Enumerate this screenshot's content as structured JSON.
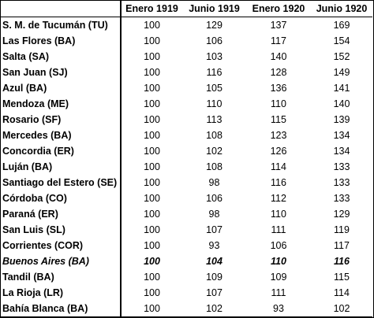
{
  "table": {
    "columns": [
      "",
      "Enero 1919",
      "Junio 1919",
      "Enero 1920",
      "Junio 1920"
    ],
    "rows": [
      {
        "city": "S. M. de Tucumán (TU)",
        "values": [
          "100",
          "129",
          "137",
          "169"
        ],
        "highlight": false
      },
      {
        "city": "Las Flores (BA)",
        "values": [
          "100",
          "106",
          "117",
          "154"
        ],
        "highlight": false
      },
      {
        "city": "Salta (SA)",
        "values": [
          "100",
          "103",
          "140",
          "152"
        ],
        "highlight": false
      },
      {
        "city": "San Juan (SJ)",
        "values": [
          "100",
          "116",
          "128",
          "149"
        ],
        "highlight": false
      },
      {
        "city": "Azul (BA)",
        "values": [
          "100",
          "105",
          "136",
          "141"
        ],
        "highlight": false
      },
      {
        "city": "Mendoza (ME)",
        "values": [
          "100",
          "110",
          "110",
          "140"
        ],
        "highlight": false
      },
      {
        "city": "Rosario (SF)",
        "values": [
          "100",
          "113",
          "115",
          "139"
        ],
        "highlight": false
      },
      {
        "city": "Mercedes (BA)",
        "values": [
          "100",
          "108",
          "123",
          "134"
        ],
        "highlight": false
      },
      {
        "city": "Concordia (ER)",
        "values": [
          "100",
          "102",
          "126",
          "134"
        ],
        "highlight": false
      },
      {
        "city": "Luján (BA)",
        "values": [
          "100",
          "108",
          "114",
          "133"
        ],
        "highlight": false
      },
      {
        "city": "Santiago del Estero (SE)",
        "values": [
          "100",
          "98",
          "116",
          "133"
        ],
        "highlight": false
      },
      {
        "city": "Córdoba (CO)",
        "values": [
          "100",
          "106",
          "112",
          "133"
        ],
        "highlight": false
      },
      {
        "city": "Paraná (ER)",
        "values": [
          "100",
          "98",
          "110",
          "129"
        ],
        "highlight": false
      },
      {
        "city": "San Luis (SL)",
        "values": [
          "100",
          "107",
          "111",
          "119"
        ],
        "highlight": false
      },
      {
        "city": "Corrientes (COR)",
        "values": [
          "100",
          "93",
          "106",
          "117"
        ],
        "highlight": false
      },
      {
        "city": "Buenos Aires (BA)",
        "values": [
          "100",
          "104",
          "110",
          "116"
        ],
        "highlight": true
      },
      {
        "city": "Tandil (BA)",
        "values": [
          "100",
          "109",
          "109",
          "115"
        ],
        "highlight": false
      },
      {
        "city": "La Rioja (LR)",
        "values": [
          "100",
          "107",
          "111",
          "114"
        ],
        "highlight": false
      },
      {
        "city": "Bahía Blanca (BA)",
        "values": [
          "100",
          "102",
          "93",
          "102"
        ],
        "highlight": false
      }
    ]
  }
}
